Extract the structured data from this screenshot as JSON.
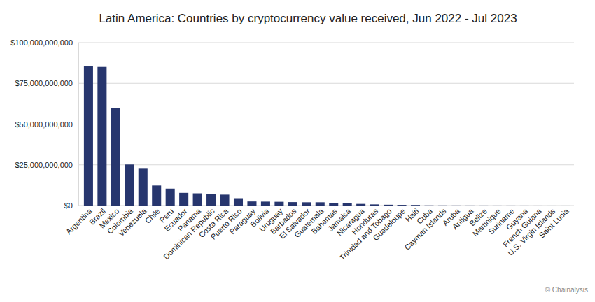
{
  "chart_data": {
    "type": "bar",
    "title": "Latin America: Countries by cryptocurrency value received, Jun 2022 - Jul 2023",
    "source": "© Chainalysis",
    "categories": [
      "Argentina",
      "Brazil",
      "Mexico",
      "Colombia",
      "Venezuela",
      "Chile",
      "Peru",
      "Ecuador",
      "Panama",
      "Dominican Republic",
      "Costa Rica",
      "Puerto Rico",
      "Paraguay",
      "Bolivia",
      "Uruguay",
      "Barbados",
      "El Salvador",
      "Guatemala",
      "Bahamas",
      "Jamaica",
      "Nicaragua",
      "Honduras",
      "Trinidad and Tobago",
      "Guadeloupe",
      "Haiti",
      "Cuba",
      "Cayman Islands",
      "Aruba",
      "Antigua",
      "Belize",
      "Martinique",
      "Suriname",
      "Guyana",
      "French Guiana",
      "U.S. Virgin Islands",
      "Saint Lucia"
    ],
    "values": [
      85400000000,
      85100000000,
      60000000000,
      25200000000,
      22600000000,
      12300000000,
      10400000000,
      7800000000,
      7500000000,
      7100000000,
      6700000000,
      4500000000,
      2500000000,
      2400000000,
      2300000000,
      2100000000,
      2000000000,
      2000000000,
      1700000000,
      1300000000,
      1000000000,
      700000000,
      500000000,
      400000000,
      350000000,
      100000000,
      80000000,
      60000000,
      50000000,
      40000000,
      30000000,
      30000000,
      20000000,
      15000000,
      10000000,
      10000000
    ],
    "color": "#27366e",
    "ylim": [
      0,
      100000000000
    ],
    "yticks": [
      {
        "value": 0,
        "label": "$0"
      },
      {
        "value": 25000000000,
        "label": "$25,000,000,000"
      },
      {
        "value": 50000000000,
        "label": "$50,000,000,000"
      },
      {
        "value": 75000000000,
        "label": "$75,000,000,000"
      },
      {
        "value": 100000000000,
        "label": "$100,000,000,000"
      }
    ],
    "grid": true
  }
}
